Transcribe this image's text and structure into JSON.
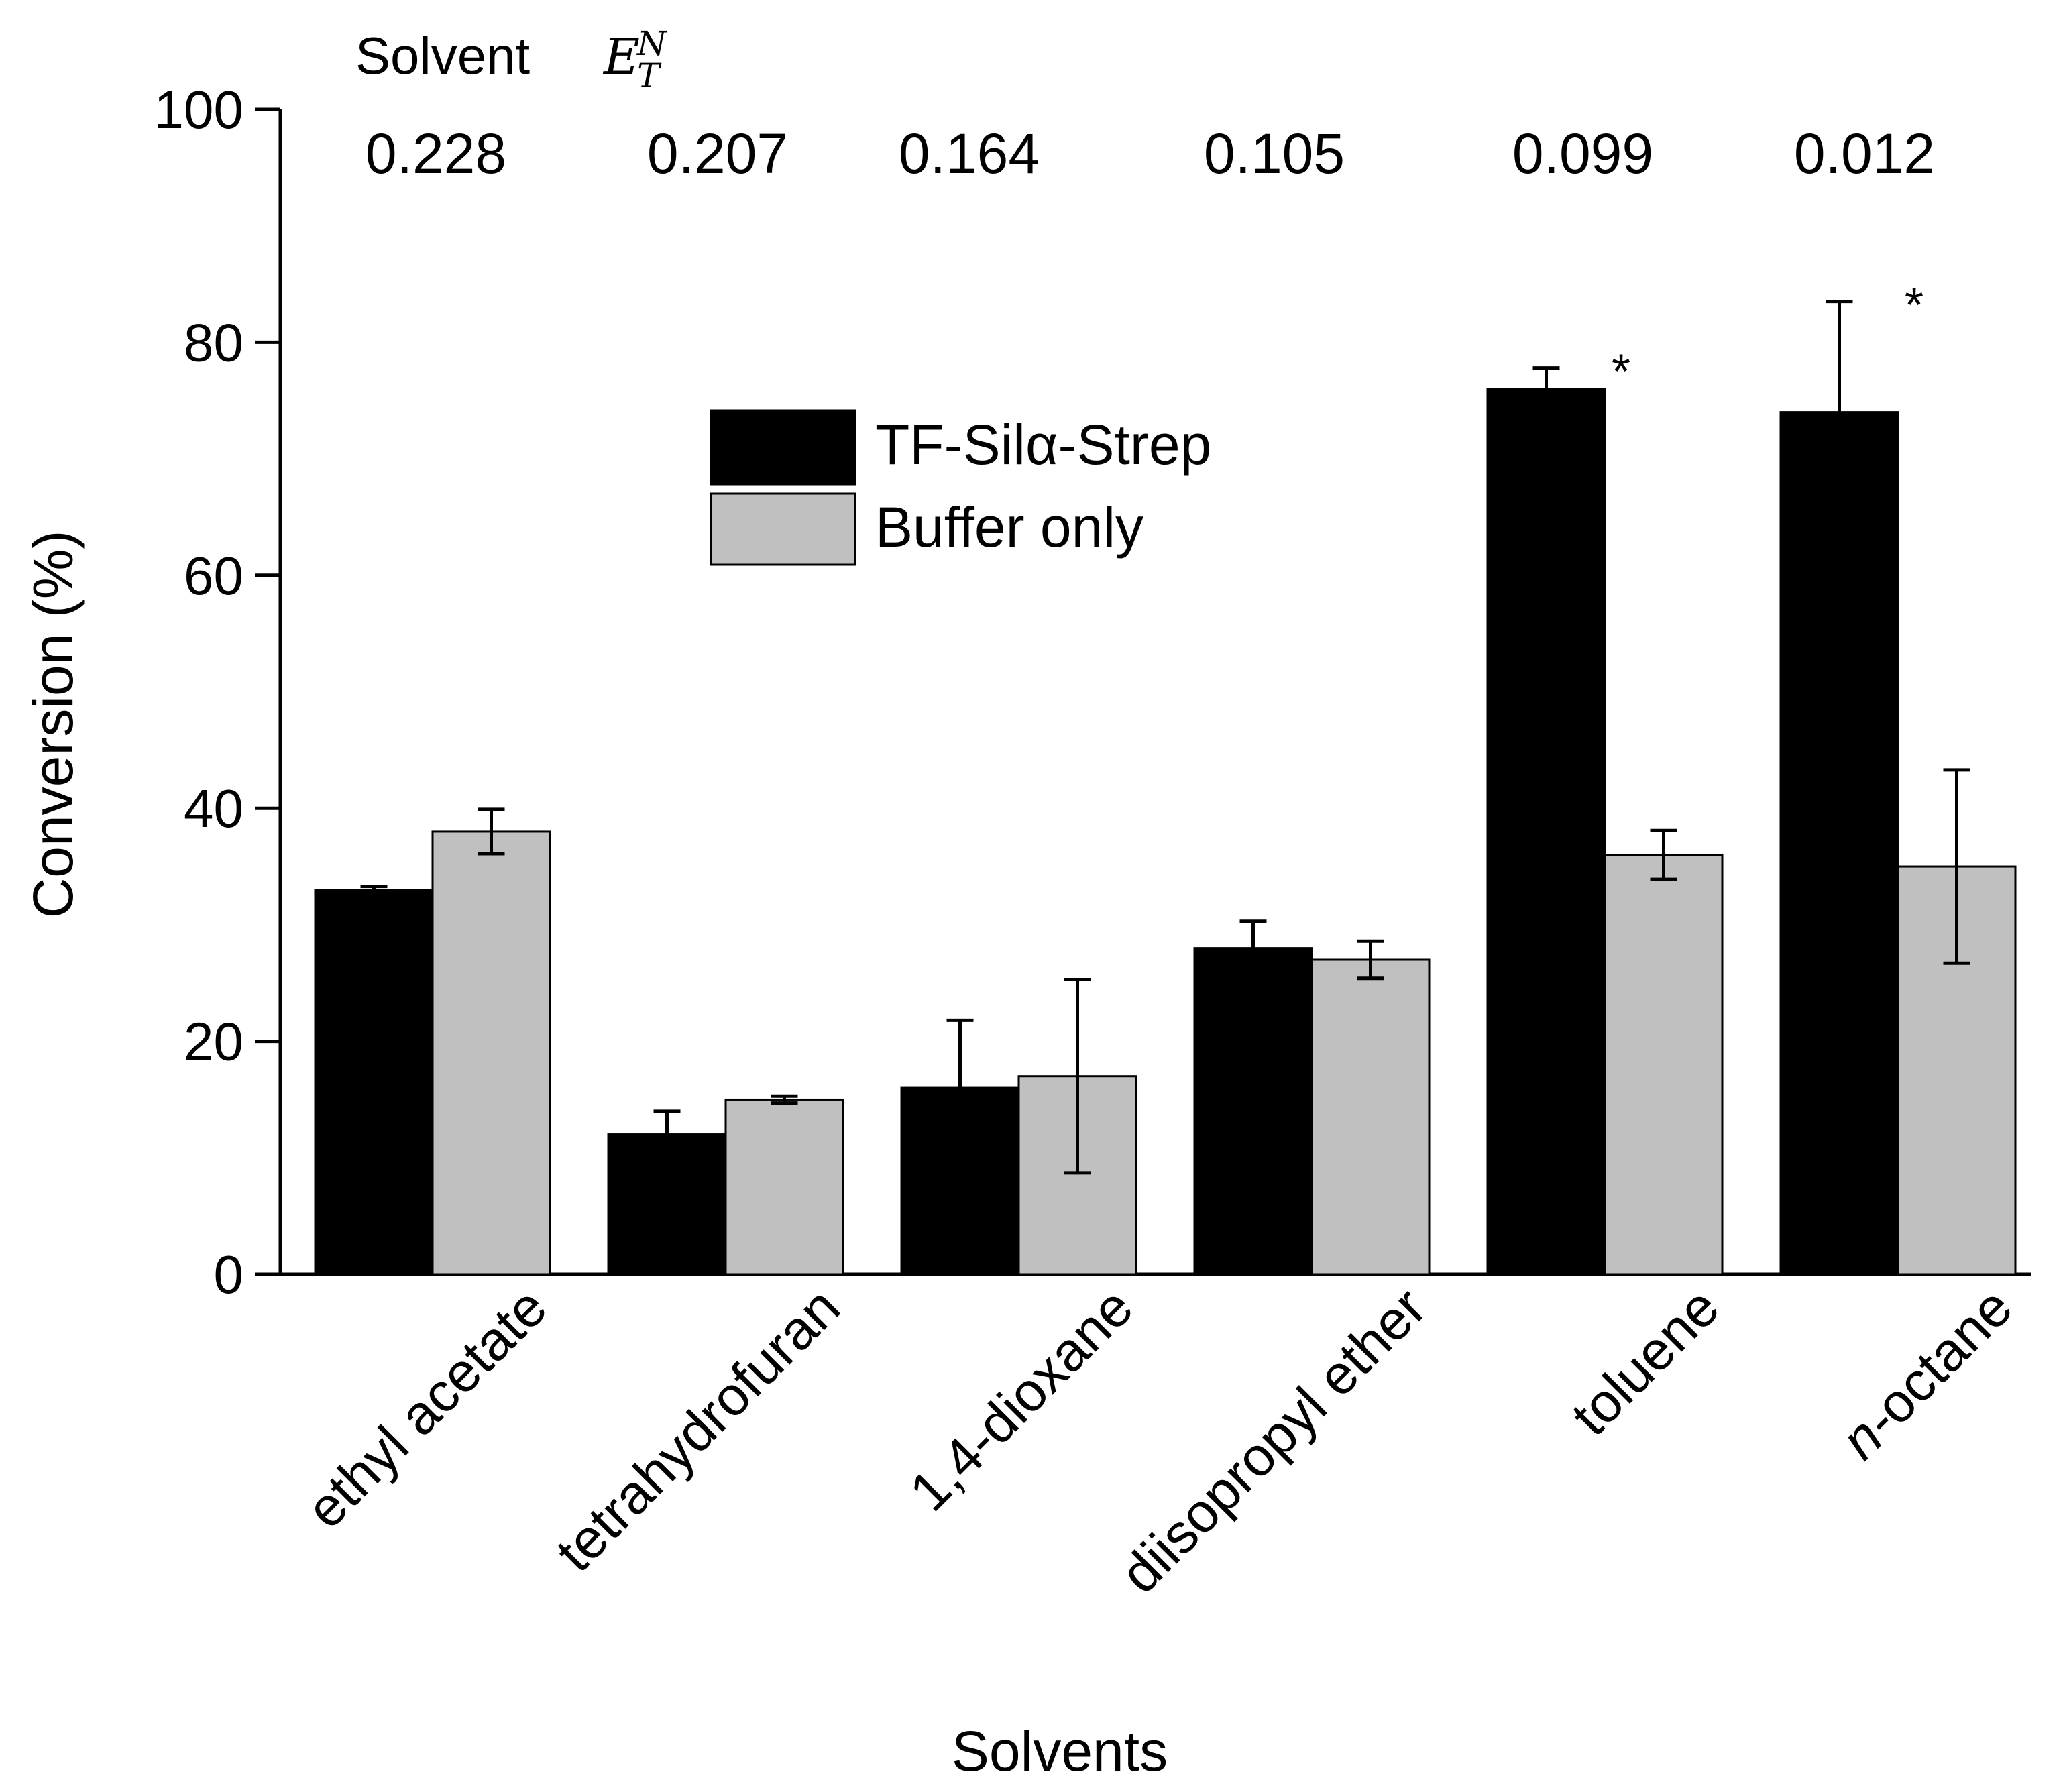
{
  "chart_data": {
    "type": "bar",
    "title": "",
    "xlabel": "Solvents",
    "ylabel": "Conversion (%)",
    "ylim": [
      0,
      100
    ],
    "yticks": [
      0,
      20,
      40,
      60,
      80,
      100
    ],
    "categories": [
      "ethyl acetate",
      "tetrahydrofuran",
      "1,4-dioxane",
      "diisopropyl ether",
      "toluene",
      "octane"
    ],
    "category_prefix_italic": [
      "",
      "",
      "",
      "",
      "",
      "n"
    ],
    "top_annotation": {
      "label_text": "Solvent",
      "symbol": "E",
      "symbol_sub": "T",
      "symbol_sup": "N",
      "values": [
        "0.228",
        "0.207",
        "0.164",
        "0.105",
        "0.099",
        "0.012"
      ]
    },
    "series": [
      {
        "name": "TF-Silα-Strep",
        "color": "#000000",
        "values": [
          33,
          12,
          16,
          28,
          76,
          74
        ],
        "errors": [
          0.3,
          2,
          5.8,
          2.3,
          1.8,
          9.5
        ]
      },
      {
        "name": "Buffer only",
        "color": "#c0c0c0",
        "values": [
          38,
          15,
          17,
          27,
          36,
          35
        ],
        "errors": [
          1.9,
          0.3,
          8.3,
          1.6,
          2.1,
          8.3
        ]
      }
    ],
    "significance_marks": [
      {
        "category": "toluene",
        "label": "*"
      },
      {
        "category": "octane",
        "label": "*"
      }
    ],
    "legend_position": "upper-middle"
  }
}
